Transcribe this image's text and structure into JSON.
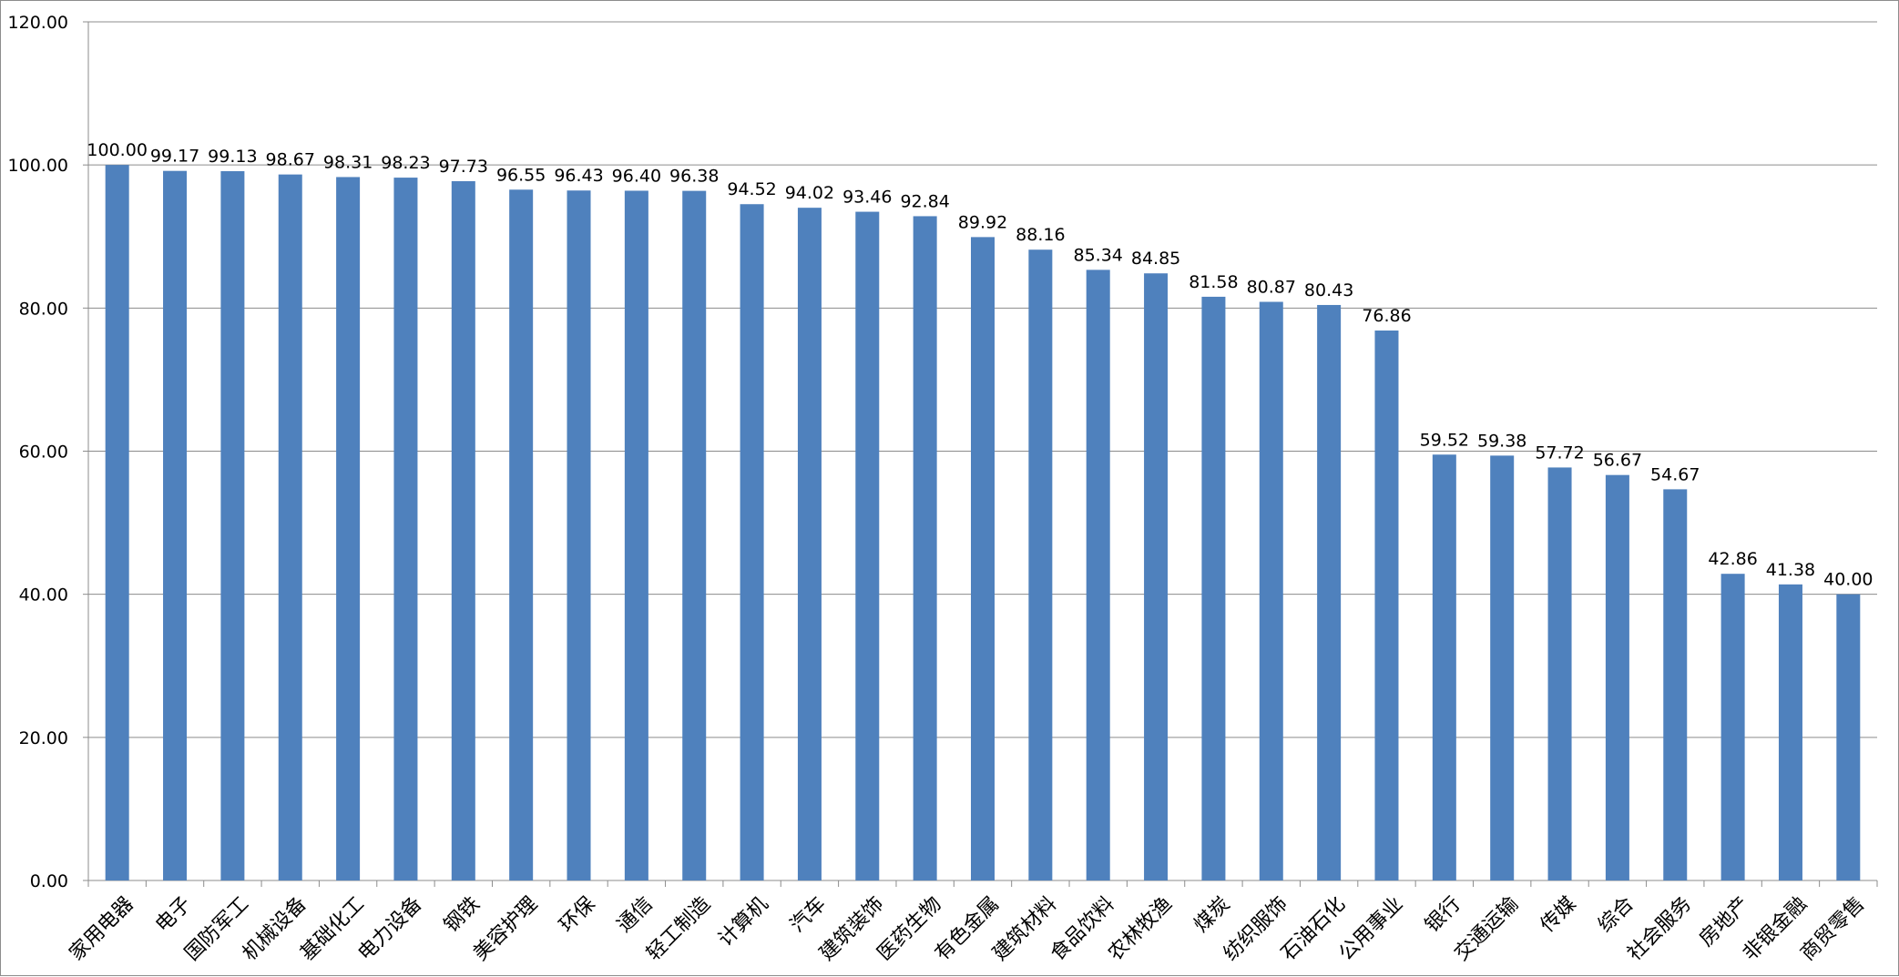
{
  "chart_data": {
    "type": "bar",
    "title": "",
    "xlabel": "",
    "ylabel": "",
    "ylim": [
      0,
      120
    ],
    "yticks": [
      "0.00",
      "20.00",
      "40.00",
      "60.00",
      "80.00",
      "100.00",
      "120.00"
    ],
    "grid": true,
    "legend": "none",
    "bar_color": "#4F81BD",
    "grid_color": "#8c8c8c",
    "categories": [
      "家用电器",
      "电子",
      "国防军工",
      "机械设备",
      "基础化工",
      "电力设备",
      "钢铁",
      "美容护理",
      "环保",
      "通信",
      "轻工制造",
      "计算机",
      "汽车",
      "建筑装饰",
      "医药生物",
      "有色金属",
      "建筑材料",
      "食品饮料",
      "农林牧渔",
      "煤炭",
      "纺织服饰",
      "石油石化",
      "公用事业",
      "银行",
      "交通运输",
      "传媒",
      "综合",
      "社会服务",
      "房地产",
      "非银金融",
      "商贸零售"
    ],
    "values": [
      100.0,
      99.17,
      99.13,
      98.67,
      98.31,
      98.23,
      97.73,
      96.55,
      96.43,
      96.4,
      96.38,
      94.52,
      94.02,
      93.46,
      92.84,
      89.92,
      88.16,
      85.34,
      84.85,
      81.58,
      80.87,
      80.43,
      76.86,
      59.52,
      59.38,
      57.72,
      56.67,
      54.67,
      42.86,
      41.38,
      40.0
    ],
    "value_labels": [
      "100.00",
      "99.17",
      "99.13",
      "98.67",
      "98.31",
      "98.23",
      "97.73",
      "96.55",
      "96.43",
      "96.40",
      "96.38",
      "94.52",
      "94.02",
      "93.46",
      "92.84",
      "89.92",
      "88.16",
      "85.34",
      "84.85",
      "81.58",
      "80.87",
      "80.43",
      "76.86",
      "59.52",
      "59.38",
      "57.72",
      "56.67",
      "54.67",
      "42.86",
      "41.38",
      "40.00"
    ]
  }
}
